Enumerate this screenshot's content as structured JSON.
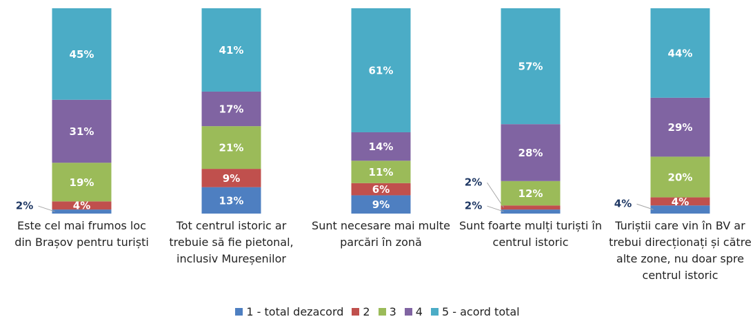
{
  "chart_data": {
    "type": "stacked_bar",
    "categories": [
      "Este cel mai frumos loc din Brașov pentru turiști",
      "Tot centrul istoric ar trebuie să fie pietonal, inclusiv Mureșenilor",
      "Sunt necesare mai multe parcări în zonă",
      "Sunt foarte mulți turiști în centrul istoric",
      "Turiștii care vin în BV ar trebui direcționați și către alte zone, nu doar spre centrul istoric"
    ],
    "series": [
      {
        "name": "1 - total dezacord",
        "color": "#4e7fc1",
        "values": [
          2,
          13,
          9,
          2,
          4
        ],
        "value_labels": [
          "2%",
          "13%",
          "9%",
          "2%",
          "4%"
        ]
      },
      {
        "name": "2",
        "color": "#c0504d",
        "values": [
          4,
          9,
          6,
          2,
          4
        ],
        "value_labels": [
          "4%",
          "9%",
          "6%",
          "2%",
          "4%"
        ]
      },
      {
        "name": "3",
        "color": "#9bbb59",
        "values": [
          19,
          21,
          11,
          12,
          20
        ],
        "value_labels": [
          "19%",
          "21%",
          "11%",
          "12%",
          "20%"
        ]
      },
      {
        "name": "4",
        "color": "#8064a2",
        "values": [
          31,
          17,
          14,
          28,
          29
        ],
        "value_labels": [
          "31%",
          "17%",
          "14%",
          "28%",
          "29%"
        ]
      },
      {
        "name": "5 - acord total",
        "color": "#4bacc6",
        "values": [
          45,
          41,
          61,
          57,
          44
        ],
        "value_labels": [
          "45%",
          "41%",
          "61%",
          "57%",
          "44%"
        ]
      }
    ],
    "ylim": [
      0,
      101
    ],
    "legend": "bottom"
  }
}
